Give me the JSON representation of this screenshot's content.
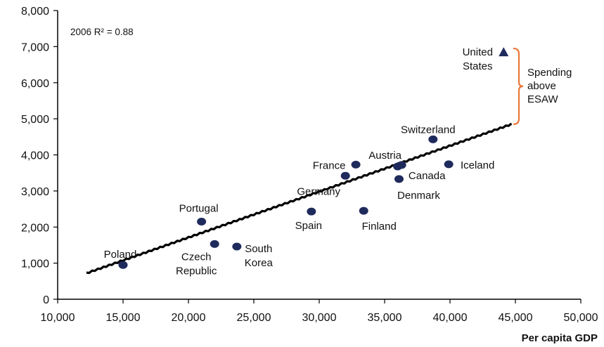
{
  "chart_data": {
    "type": "scatter",
    "title": "",
    "xlabel": "Per capita GDP",
    "ylabel": "",
    "xlim": [
      10000,
      50000
    ],
    "ylim": [
      0,
      8000
    ],
    "x_ticks": [
      "10,000",
      "15,000",
      "20,000",
      "25,000",
      "30,000",
      "35,000",
      "40,000",
      "45,000",
      "50,000"
    ],
    "x_tick_values": [
      10000,
      15000,
      20000,
      25000,
      30000,
      35000,
      40000,
      45000,
      50000
    ],
    "y_ticks": [
      "0",
      "1,000",
      "2,000",
      "3,000",
      "4,000",
      "5,000",
      "6,000",
      "7,000",
      "8,000"
    ],
    "y_tick_values": [
      0,
      1000,
      2000,
      3000,
      4000,
      5000,
      6000,
      7000,
      8000
    ],
    "grid": false,
    "annotation_text": "2006 R² = 0.88",
    "trendline": {
      "x": [
        12200,
        44700
      ],
      "y": [
        720,
        4850
      ]
    },
    "points": [
      {
        "label": "Poland",
        "label_lines": [
          "Poland"
        ],
        "x": 15000,
        "y": 950,
        "marker": "circle"
      },
      {
        "label": "Portugal",
        "label_lines": [
          "Portugal"
        ],
        "x": 21000,
        "y": 2150,
        "marker": "circle"
      },
      {
        "label": "Czech Republic",
        "label_lines": [
          "Czech",
          "Republic"
        ],
        "x": 22000,
        "y": 1530,
        "marker": "circle"
      },
      {
        "label": "South Korea",
        "label_lines": [
          "South",
          "Korea"
        ],
        "x": 23700,
        "y": 1460,
        "marker": "circle"
      },
      {
        "label": "Spain",
        "label_lines": [
          "Spain"
        ],
        "x": 29400,
        "y": 2430,
        "marker": "circle"
      },
      {
        "label": "Germany",
        "label_lines": [
          "Germany"
        ],
        "x": 32000,
        "y": 3420,
        "marker": "circle"
      },
      {
        "label": "France",
        "label_lines": [
          "France"
        ],
        "x": 32800,
        "y": 3730,
        "marker": "circle"
      },
      {
        "label": "Finland",
        "label_lines": [
          "Finland"
        ],
        "x": 33400,
        "y": 2450,
        "marker": "circle"
      },
      {
        "label": "Denmark",
        "label_lines": [
          "Denmark"
        ],
        "x": 36100,
        "y": 3330,
        "marker": "circle"
      },
      {
        "label": "Austria",
        "label_lines": [
          "Austria"
        ],
        "x": 36000,
        "y": 3680,
        "marker": "circle"
      },
      {
        "label": "Canada",
        "label_lines": [
          "Canada"
        ],
        "x": 36300,
        "y": 3720,
        "marker": "circle"
      },
      {
        "label": "Switzerland",
        "label_lines": [
          "Switzerland"
        ],
        "x": 38700,
        "y": 4430,
        "marker": "circle"
      },
      {
        "label": "Iceland",
        "label_lines": [
          "Iceland"
        ],
        "x": 39900,
        "y": 3740,
        "marker": "circle"
      },
      {
        "label": "United States",
        "label_lines": [
          "United",
          "States"
        ],
        "x": 44100,
        "y": 6850,
        "marker": "triangle"
      }
    ],
    "bracket": {
      "label_lines": [
        "Spending",
        "above",
        "ESAW"
      ],
      "y_top": 6950,
      "y_bottom": 4850,
      "color": "#e8793a"
    },
    "colors": {
      "marker": "#1f2a5c",
      "trendline": "#000000",
      "axis": "#000000"
    }
  }
}
